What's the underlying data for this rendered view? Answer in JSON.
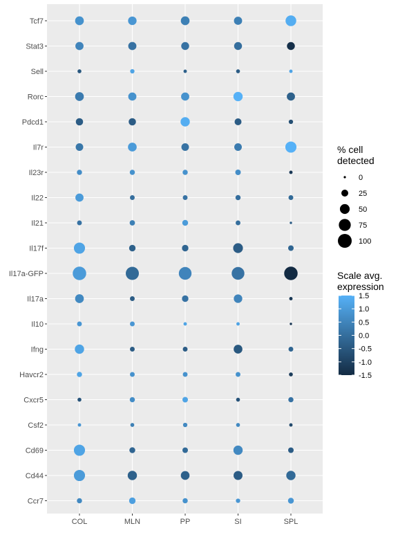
{
  "chart_data": {
    "type": "scatter",
    "title": "",
    "xlabel": "",
    "ylabel": "",
    "x_categories": [
      "COL",
      "MLN",
      "PP",
      "SI",
      "SPL"
    ],
    "y_categories": [
      "Tcf7",
      "Stat3",
      "Sell",
      "Rorc",
      "Pdcd1",
      "Il7r",
      "Il23r",
      "Il22",
      "Il21",
      "Il17f",
      "Il17a-GFP",
      "Il17a",
      "Il10",
      "Ifng",
      "Havcr2",
      "Cxcr5",
      "Csf2",
      "Cd69",
      "Cd44",
      "Ccr7"
    ],
    "pct_detected": [
      [
        40,
        38,
        40,
        35,
        60
      ],
      [
        35,
        35,
        33,
        33,
        33
      ],
      [
        8,
        10,
        6,
        8,
        6
      ],
      [
        40,
        35,
        35,
        45,
        35
      ],
      [
        28,
        28,
        45,
        25,
        10
      ],
      [
        30,
        40,
        30,
        30,
        65
      ],
      [
        14,
        14,
        14,
        16,
        6
      ],
      [
        35,
        12,
        12,
        14,
        12
      ],
      [
        12,
        15,
        18,
        12,
        3
      ],
      [
        65,
        22,
        22,
        50,
        16
      ],
      [
        95,
        90,
        85,
        85,
        95
      ],
      [
        40,
        12,
        22,
        38,
        6
      ],
      [
        12,
        12,
        6,
        6,
        3
      ],
      [
        45,
        12,
        12,
        40,
        12
      ],
      [
        14,
        12,
        12,
        12,
        8
      ],
      [
        8,
        14,
        16,
        8,
        14
      ],
      [
        6,
        8,
        10,
        8,
        6
      ],
      [
        65,
        18,
        16,
        45,
        16
      ],
      [
        65,
        45,
        40,
        42,
        45
      ],
      [
        14,
        22,
        14,
        10,
        18
      ]
    ],
    "scaled_expression": [
      [
        0.8,
        0.9,
        0.4,
        0.4,
        1.4
      ],
      [
        0.5,
        0.1,
        0.1,
        0.0,
        -1.4
      ],
      [
        -0.5,
        1.2,
        -0.3,
        -0.4,
        1.2
      ],
      [
        0.3,
        0.8,
        0.8,
        1.5,
        -0.3
      ],
      [
        -0.4,
        -0.4,
        1.4,
        -0.4,
        -0.7
      ],
      [
        0.2,
        1.0,
        0.1,
        0.3,
        1.6
      ],
      [
        0.7,
        0.8,
        0.8,
        0.7,
        -1.2
      ],
      [
        1.0,
        0.0,
        0.1,
        0.0,
        -0.1
      ],
      [
        0.1,
        0.4,
        1.0,
        0.0,
        -0.4
      ],
      [
        1.2,
        -0.3,
        -0.2,
        -0.4,
        -0.2
      ],
      [
        1.0,
        -0.1,
        0.5,
        0.1,
        -1.5
      ],
      [
        0.6,
        -0.4,
        0.1,
        0.5,
        -1.2
      ],
      [
        0.9,
        0.9,
        1.2,
        1.2,
        -1.2
      ],
      [
        1.2,
        -0.4,
        -0.4,
        -0.5,
        -0.2
      ],
      [
        1.2,
        0.8,
        0.8,
        0.8,
        -1.1
      ],
      [
        -0.6,
        0.7,
        1.2,
        -0.6,
        0.1
      ],
      [
        0.9,
        0.4,
        0.6,
        0.6,
        -0.8
      ],
      [
        1.2,
        -0.2,
        -0.1,
        0.6,
        -0.4
      ],
      [
        1.0,
        -0.3,
        -0.3,
        -0.4,
        -0.1
      ],
      [
        0.6,
        1.1,
        0.8,
        0.9,
        0.9
      ]
    ],
    "size_legend": {
      "title": "% cell\ndetected",
      "values": [
        0,
        25,
        50,
        75,
        100
      ]
    },
    "color_legend": {
      "title": "Scale avg.\nexpression",
      "values": [
        1.5,
        1.0,
        0.5,
        0.0,
        -0.5,
        -1.0,
        -1.5
      ],
      "labels": [
        "1.5",
        "1.0",
        "0.5",
        "0.0",
        "-0.5",
        "-1.0",
        "-1.5"
      ],
      "range": [
        -1.5,
        1.5
      ]
    },
    "colors": {
      "low": "#132b43",
      "high": "#56b1f7",
      "panel": "#ebebeb",
      "grid": "#ffffff"
    },
    "grid": true,
    "legend_position": "right"
  }
}
